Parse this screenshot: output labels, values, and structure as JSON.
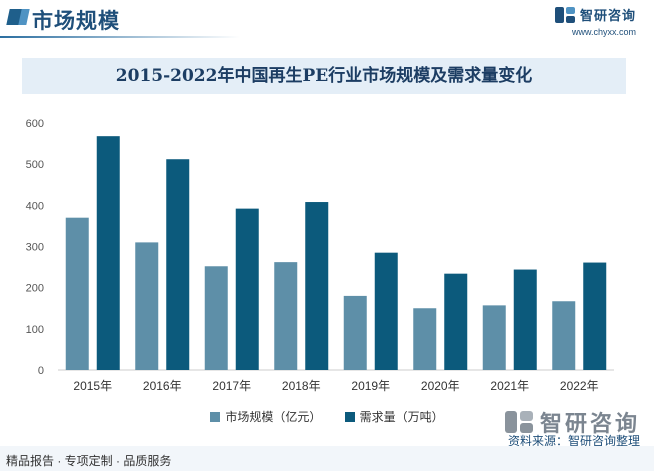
{
  "header": {
    "section_title": "市场规模",
    "brand_name": "智研咨询",
    "brand_url": "www.chyxx.com"
  },
  "colors": {
    "series1": "#5e8fa8",
    "series2": "#0c5a7c",
    "title_band": "#e4eef7"
  },
  "chart_data": {
    "type": "bar",
    "title": "2015-2022年中国再生PE行业市场规模及需求量变化",
    "categories": [
      "2015年",
      "2016年",
      "2017年",
      "2018年",
      "2019年",
      "2020年",
      "2021年",
      "2022年"
    ],
    "series": [
      {
        "name": "市场规模（亿元）",
        "values": [
          370,
          310,
          252,
          262,
          180,
          150,
          157,
          167
        ]
      },
      {
        "name": "需求量（万吨）",
        "values": [
          568,
          512,
          392,
          408,
          285,
          234,
          244,
          261
        ]
      }
    ],
    "yticks": [
      "0",
      "100",
      "200",
      "300",
      "400",
      "500",
      "600"
    ],
    "ylim": [
      0,
      600
    ],
    "grid": false,
    "legend_position": "bottom"
  },
  "footer": {
    "left_text": "精品报告 · 专项定制 · 品质服务",
    "brand_name": "智研咨询",
    "source_text": "资料来源：智研咨询整理"
  }
}
